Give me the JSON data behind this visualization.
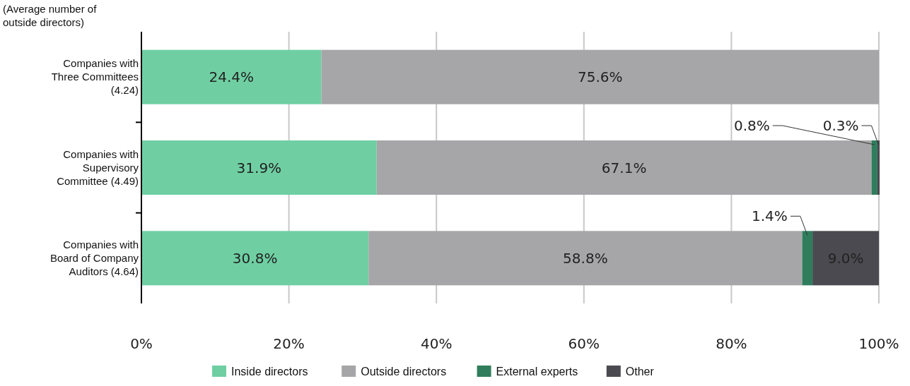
{
  "chart_data": {
    "type": "bar",
    "orientation": "horizontal",
    "stacked": true,
    "ylabel": "(Average number of outside directors)",
    "categories": [
      "Companies with Three Committees (4.24)",
      "Companies with Supervisory Committee (4.49)",
      "Companies with Board of Company Auditors (4.64)"
    ],
    "series": [
      {
        "name": "Inside directors",
        "color": "#6fcfa3",
        "values": [
          24.4,
          31.9,
          30.8
        ],
        "value_labels": [
          "24.4%",
          "31.9%",
          "30.8%"
        ]
      },
      {
        "name": "Outside directors",
        "color": "#a6a6a8",
        "values": [
          75.6,
          67.1,
          58.8
        ],
        "value_labels": [
          "75.6%",
          "67.1%",
          "58.8%"
        ]
      },
      {
        "name": "External experts",
        "color": "#2f7d5c",
        "values": [
          null,
          0.8,
          1.4
        ],
        "value_labels": [
          null,
          "0.8%",
          "1.4%"
        ]
      },
      {
        "name": "Other",
        "color": "#4a4a50",
        "values": [
          null,
          0.3,
          9.0
        ],
        "value_labels": [
          null,
          "0.3%",
          "9.0%"
        ]
      }
    ],
    "xlim": [
      0,
      100
    ],
    "xticks": [
      {
        "value": 0,
        "label": "0%"
      },
      {
        "value": 20,
        "label": "20%"
      },
      {
        "value": 40,
        "label": "40%"
      },
      {
        "value": 60,
        "label": "60%"
      },
      {
        "value": 80,
        "label": "80%"
      },
      {
        "value": 100,
        "label": "100%"
      }
    ],
    "grid": "x",
    "legend": "bottom"
  }
}
